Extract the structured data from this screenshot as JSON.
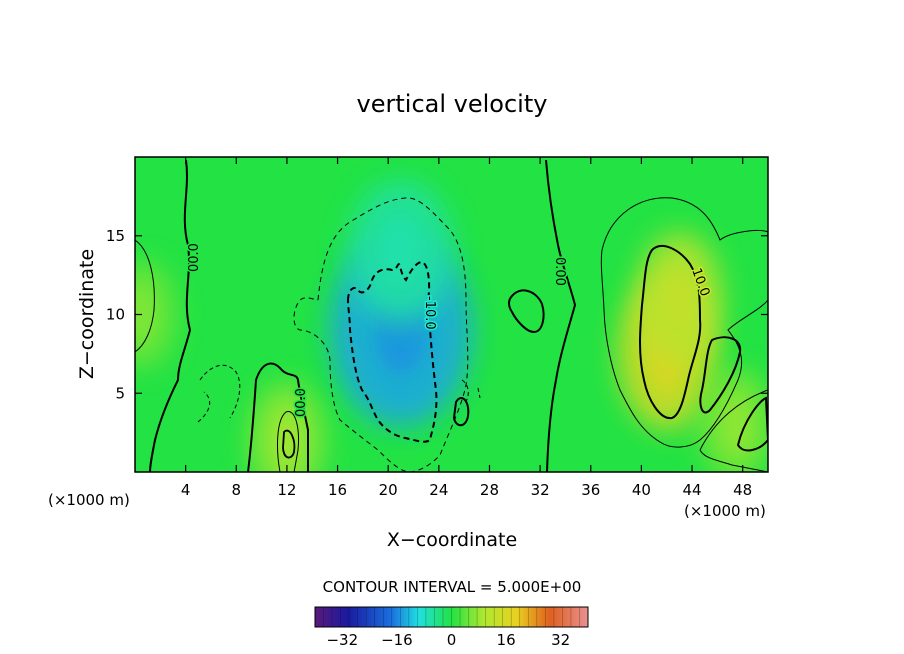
{
  "chart_data": {
    "type": "heatmap",
    "title": "vertical velocity",
    "xlabel": "X−coordinate",
    "ylabel": "Z−coordinate",
    "x_unit_left": "(×1000 m)",
    "x_unit_right": "(×1000 m)",
    "xlim": [
      0,
      50
    ],
    "ylim": [
      0,
      20
    ],
    "x_ticks": [
      "4",
      "8",
      "12",
      "16",
      "20",
      "24",
      "28",
      "32",
      "36",
      "40",
      "44",
      "48"
    ],
    "y_ticks": [
      "5",
      "10",
      "15"
    ],
    "contour_interval_text": "CONTOUR INTERVAL = 5.000E+00",
    "contour_labels": [
      "00.0",
      "00.0",
      "0.00",
      "-10.0",
      "10.0"
    ],
    "colorbar": {
      "range": [
        -40,
        40
      ],
      "ticks": [
        "−32",
        "−16",
        "0",
        "16",
        "32"
      ]
    },
    "grid": false,
    "legend": "none",
    "field_features": [
      {
        "kind": "downdraft",
        "x": 21,
        "z": 9,
        "value": -14
      },
      {
        "kind": "downdraft",
        "x": 21,
        "z": 14,
        "value": -6
      },
      {
        "kind": "updraft",
        "x": 42,
        "z": 7.5,
        "value": 16
      },
      {
        "kind": "updraft",
        "x": 43,
        "z": 11,
        "value": 12
      },
      {
        "kind": "updraft",
        "x": 12,
        "z": 2,
        "value": 8
      },
      {
        "kind": "updraft",
        "x": 47.5,
        "z": 3,
        "value": 7
      },
      {
        "kind": "updraft",
        "x": 0.5,
        "z": 10,
        "value": 6
      }
    ]
  }
}
